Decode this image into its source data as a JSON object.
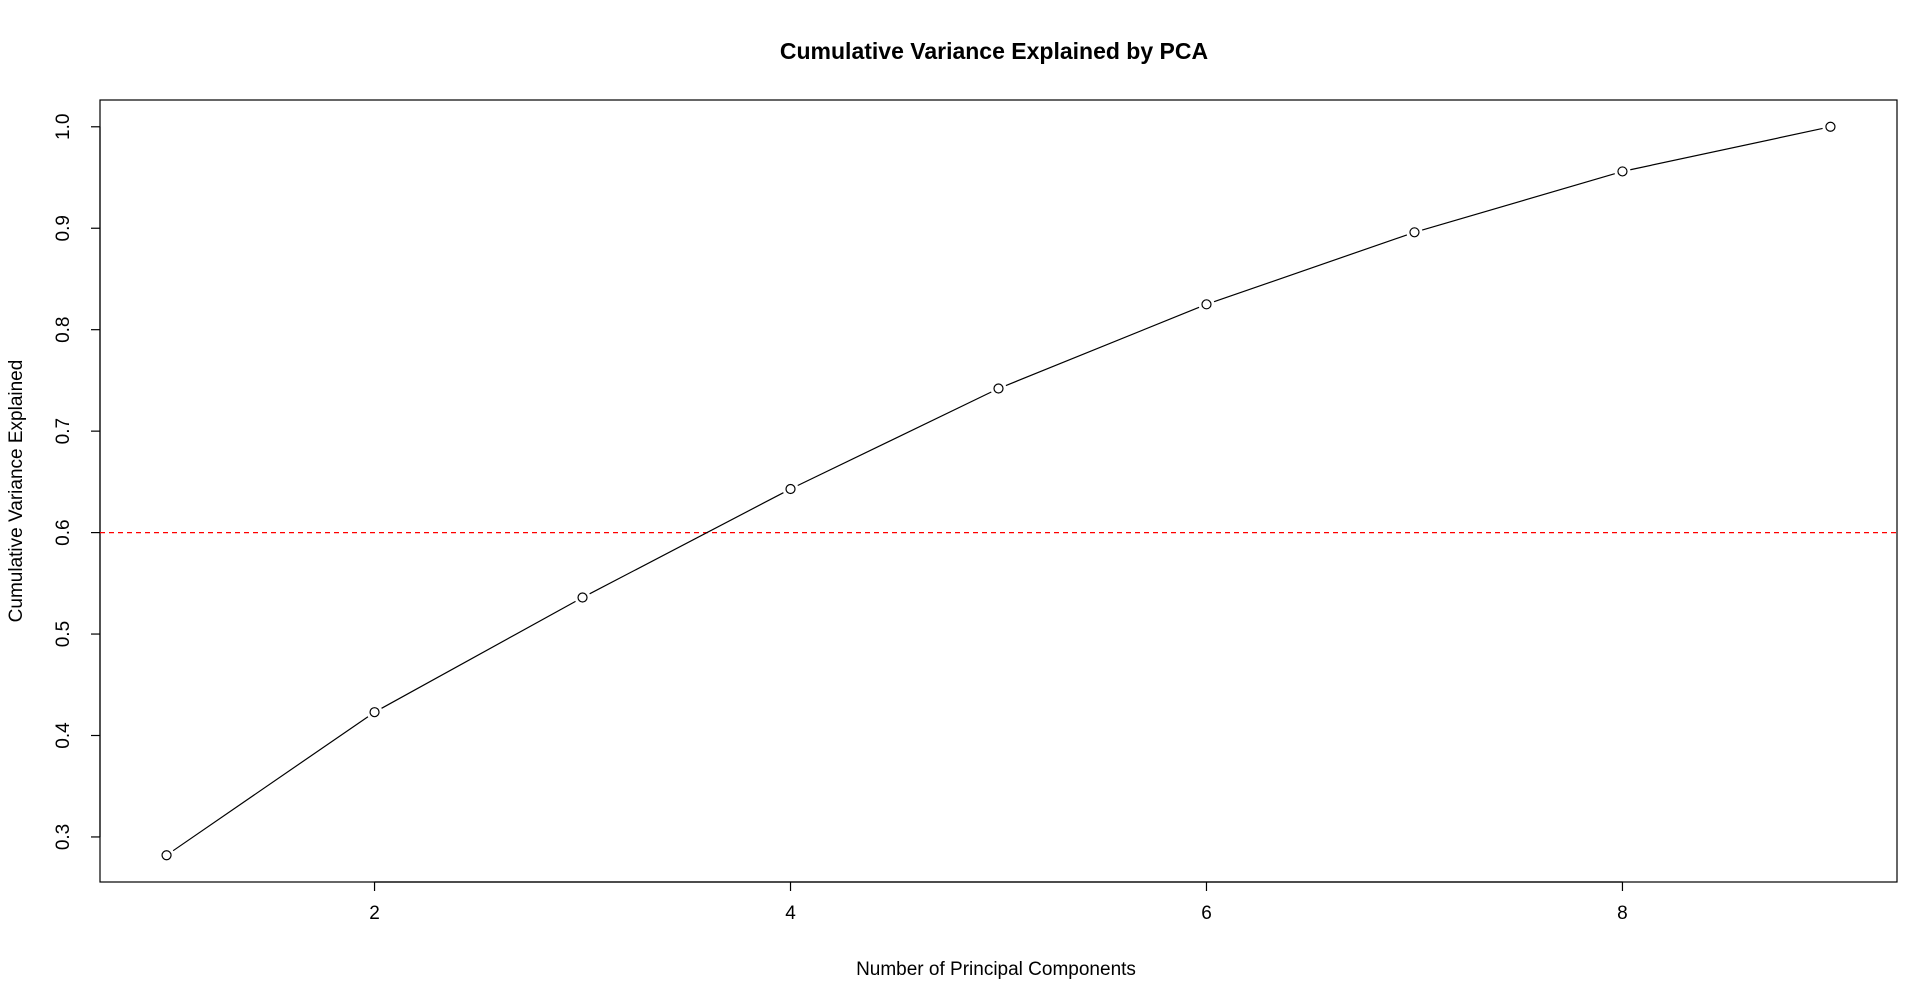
{
  "chart_data": {
    "type": "line",
    "title": "Cumulative Variance Explained by PCA",
    "xlabel": "Number of Principal Components",
    "ylabel": "Cumulative Variance Explained",
    "x": [
      1,
      2,
      3,
      4,
      5,
      6,
      7,
      8,
      9
    ],
    "series": [
      {
        "values": [
          0.282,
          0.423,
          0.536,
          0.643,
          0.742,
          0.825,
          0.896,
          0.956,
          1.0
        ],
        "color": "#000000",
        "marker": "open-circle"
      }
    ],
    "reference_line": {
      "axis": "y",
      "value": 0.6,
      "color": "#ff0000",
      "style": "dashed"
    },
    "xlim": [
      0.68,
      9.32
    ],
    "ylim": [
      0.2556,
      1.0264
    ],
    "xticks": [
      2,
      4,
      6,
      8
    ],
    "xtick_labels": [
      "2",
      "4",
      "6",
      "8"
    ],
    "yticks": [
      0.3,
      0.4,
      0.5,
      0.6,
      0.7,
      0.8,
      0.9,
      1.0
    ],
    "ytick_labels": [
      "0.3",
      "0.4",
      "0.5",
      "0.6",
      "0.7",
      "0.8",
      "0.9",
      "1.0"
    ],
    "grid": false,
    "legend": "none"
  }
}
